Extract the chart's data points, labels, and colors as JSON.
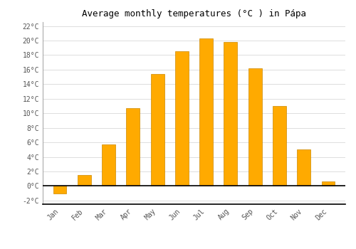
{
  "title": "Average monthly temperatures (°C ) in Pápa",
  "months": [
    "Jan",
    "Feb",
    "Mar",
    "Apr",
    "May",
    "Jun",
    "Jul",
    "Aug",
    "Sep",
    "Oct",
    "Nov",
    "Dec"
  ],
  "temperatures": [
    -1.0,
    1.5,
    5.7,
    10.7,
    15.4,
    18.5,
    20.3,
    19.8,
    16.2,
    11.0,
    5.0,
    0.6
  ],
  "bar_color": "#FFAA00",
  "bar_edge_color": "#CC8800",
  "background_color": "#FFFFFF",
  "grid_color": "#DDDDDD",
  "ylim": [
    -2.5,
    22.5
  ],
  "yticks": [
    -2,
    0,
    2,
    4,
    6,
    8,
    10,
    12,
    14,
    16,
    18,
    20,
    22
  ],
  "ytick_labels": [
    "-2°C",
    "0°C",
    "2°C",
    "4°C",
    "6°C",
    "8°C",
    "10°C",
    "12°C",
    "14°C",
    "16°C",
    "18°C",
    "20°C",
    "22°C"
  ],
  "title_fontsize": 9,
  "tick_fontsize": 7,
  "font_family": "monospace",
  "bar_width": 0.55
}
